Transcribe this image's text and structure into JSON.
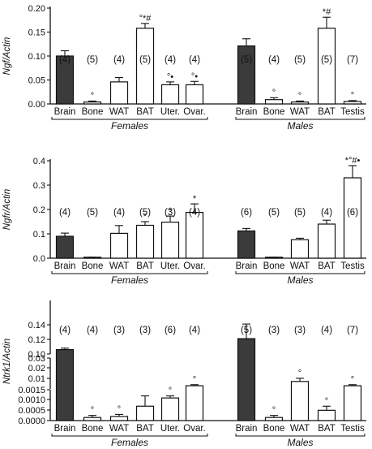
{
  "chart_data": [
    {
      "type": "bar",
      "ylabel": "Ngf/Actin",
      "ylim": [
        0,
        0.2
      ],
      "yticks": [
        "0.00",
        "0.05",
        "0.10",
        "0.15",
        "0.20"
      ],
      "groups": [
        {
          "name": "Females",
          "categories": [
            "Brain",
            "Bone",
            "WAT",
            "BAT",
            "Uter.",
            "Ovar."
          ],
          "values": [
            0.1,
            0.004,
            0.046,
            0.158,
            0.04,
            0.04
          ],
          "errors": [
            0.011,
            0.002,
            0.009,
            0.01,
            0.006,
            0.007
          ],
          "n": [
            "(4)",
            "(5)",
            "(4)",
            "(5)",
            "(4)",
            "(4)"
          ],
          "sig": [
            "",
            "°",
            "",
            "°*#",
            "°•",
            "°•"
          ],
          "fill": [
            "dark",
            "white",
            "white",
            "white",
            "white",
            "white"
          ]
        },
        {
          "name": "Males",
          "categories": [
            "Brain",
            "Bone",
            "WAT",
            "BAT",
            "Testis"
          ],
          "values": [
            0.121,
            0.009,
            0.004,
            0.158,
            0.005
          ],
          "errors": [
            0.015,
            0.004,
            0.002,
            0.023,
            0.002
          ],
          "n": [
            "(5)",
            "(4)",
            "(5)",
            "(5)",
            "(7)"
          ],
          "sig": [
            "",
            "°",
            "°",
            "*#",
            "°"
          ],
          "fill": [
            "dark",
            "white",
            "white",
            "white",
            "white"
          ]
        }
      ]
    },
    {
      "type": "bar",
      "ylabel": "Ngfr/Actin",
      "ylim": [
        0,
        0.4
      ],
      "yticks": [
        "0.0",
        "0.1",
        "0.2",
        "0.3",
        "0.4"
      ],
      "groups": [
        {
          "name": "Females",
          "categories": [
            "Brain",
            "Bone",
            "WAT",
            "BAT",
            "Uter.",
            "Ovar."
          ],
          "values": [
            0.09,
            0.003,
            0.102,
            0.135,
            0.148,
            0.188
          ],
          "errors": [
            0.013,
            0.001,
            0.032,
            0.015,
            0.025,
            0.035
          ],
          "n": [
            "(4)",
            "(5)",
            "(4)",
            "(5)",
            "(3)",
            "(4)"
          ],
          "sig": [
            "",
            "",
            "",
            "*",
            "*",
            "*"
          ],
          "fill": [
            "dark",
            "dark",
            "white",
            "white",
            "white",
            "white"
          ]
        },
        {
          "name": "Males",
          "categories": [
            "Brain",
            "Bone",
            "WAT",
            "BAT",
            "Testis"
          ],
          "values": [
            0.112,
            0.003,
            0.076,
            0.14,
            0.33
          ],
          "errors": [
            0.01,
            0.001,
            0.006,
            0.016,
            0.05
          ],
          "n": [
            "(6)",
            "(5)",
            "(5)",
            "(4)",
            "(6)"
          ],
          "sig": [
            "",
            "",
            "",
            "",
            "*°#•"
          ],
          "fill": [
            "dark",
            "dark",
            "white",
            "white",
            "white"
          ]
        }
      ]
    },
    {
      "type": "bar",
      "ylabel": "Ntrk1/Actin",
      "scale": "broken",
      "yticks": [
        "0.0000",
        "0.0005",
        "0.0010",
        "0.0015",
        "0.01",
        "0.02",
        "0.03",
        "0.10",
        "0.12",
        "0.14"
      ],
      "groups": [
        {
          "name": "Females",
          "categories": [
            "Brain",
            "Bone",
            "WAT",
            "BAT",
            "Uter.",
            "Ovar."
          ],
          "values": [
            0.106,
            0.00015,
            0.0002,
            0.0007,
            0.0011,
            0.004
          ],
          "errors": [
            0.002,
            0.0001,
            0.0001,
            0.0005,
            0.0001,
            0.001
          ],
          "n": [
            "(4)",
            "(4)",
            "(3)",
            "(3)",
            "(6)",
            "(4)"
          ],
          "sig": [
            "",
            "°",
            "°",
            "",
            "°",
            "°"
          ],
          "fill": [
            "dark",
            "white",
            "white",
            "white",
            "white",
            "white"
          ]
        },
        {
          "name": "Males",
          "categories": [
            "Brain",
            "Bone",
            "WAT",
            "BAT",
            "Testis"
          ],
          "values": [
            0.121,
            0.00015,
            0.008,
            0.0005,
            0.004
          ],
          "errors": [
            0.02,
            0.0001,
            0.003,
            0.0002,
            0.001
          ],
          "n": [
            "(5)",
            "(3)",
            "(3)",
            "(4)",
            "(7)"
          ],
          "sig": [
            "",
            "°",
            "°",
            "°",
            "°"
          ],
          "fill": [
            "dark",
            "white",
            "white",
            "white",
            "white"
          ]
        }
      ]
    }
  ]
}
